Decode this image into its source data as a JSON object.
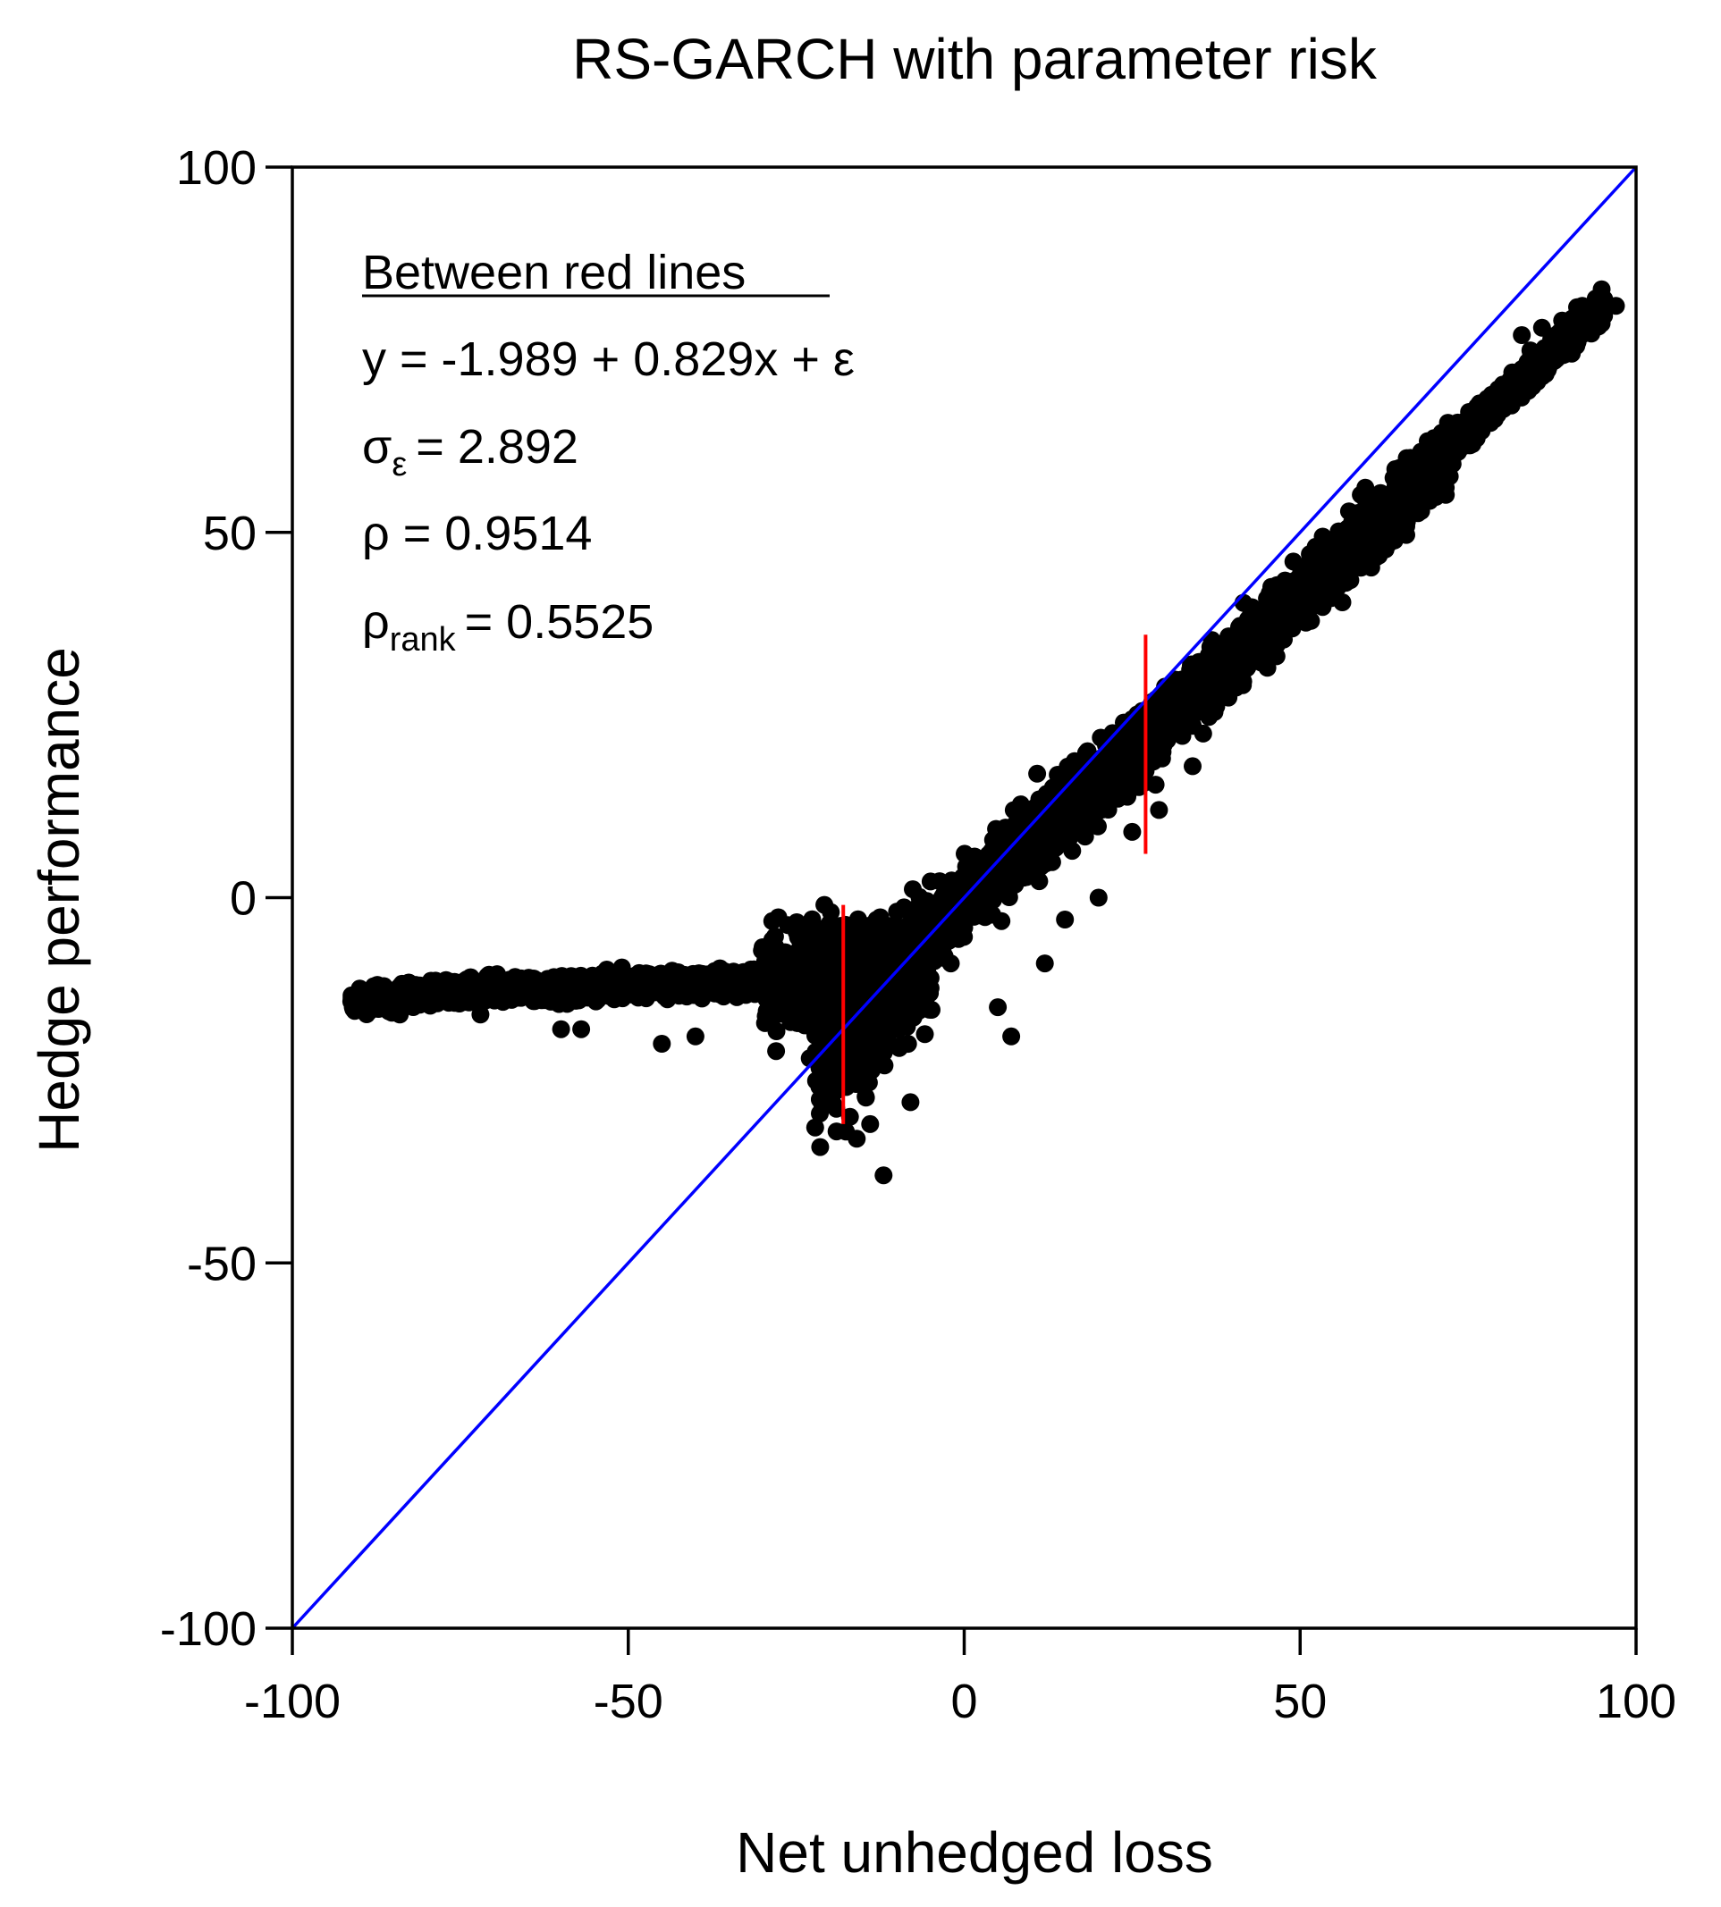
{
  "chart_data": {
    "type": "scatter",
    "title": "RS-GARCH with parameter risk",
    "xlabel": "Net unhedged loss",
    "ylabel": "Hedge performance",
    "xlim": [
      -100,
      100
    ],
    "ylim": [
      -100,
      100
    ],
    "xticks": [
      -100,
      -50,
      0,
      50,
      100
    ],
    "yticks": [
      -100,
      -50,
      0,
      50,
      100
    ],
    "xtick_labels": [
      "-100",
      "-50",
      "0",
      "50",
      "100"
    ],
    "ytick_labels": [
      "-100",
      "-50",
      "0",
      "50",
      "100"
    ],
    "grid": false,
    "colors": {
      "points": "#000000",
      "identity_line": "#0000ff",
      "red_lines": "#ff0000",
      "axes": "#000000"
    },
    "identity_line": {
      "x": [
        -100,
        100
      ],
      "y": [
        -100,
        100
      ]
    },
    "red_lines": [
      {
        "x": -18,
        "y": [
          -31,
          -1
        ]
      },
      {
        "x": 27,
        "y": [
          6,
          36
        ]
      }
    ],
    "annotation": {
      "heading": "Between red lines",
      "equation": "y = -1.989 + 0.829x + ε",
      "sigma_symbol": "σ",
      "sigma_sub": "ε",
      "sigma_value": "= 2.892",
      "rho_text": "ρ = 0.9514",
      "rho_rank_symbol": "ρ",
      "rho_rank_sub": "rank",
      "rho_rank_value": "= 0.5525"
    },
    "regression": {
      "intercept": -1.989,
      "slope": 0.829,
      "sigma_epsilon": 2.892,
      "rho": 0.9514,
      "rho_rank": 0.5525
    },
    "point_bands": [
      {
        "x_range": [
          -91,
          -30
        ],
        "y_at_start": -14.8,
        "y_at_end": -11.5,
        "spread": 1.1,
        "curve": 0.4
      },
      {
        "x_range": [
          -30,
          -12
        ],
        "y_at_start": -11.5,
        "y_at_end": -9,
        "spread": 4.5,
        "curve": 1.0
      },
      {
        "x_range": [
          -22,
          -5
        ],
        "y_at_start": -24,
        "y_at_end": -8,
        "spread": 5.5,
        "curve": 1.0
      },
      {
        "x_range": [
          -12,
          30
        ],
        "y_at_start": -10,
        "y_at_end": 24,
        "spread": 3.4,
        "curve": 1.0
      },
      {
        "x_range": [
          25,
          72
        ],
        "y_at_start": 20,
        "y_at_end": 60,
        "spread": 3.0,
        "curve": 1.0
      },
      {
        "x_range": [
          68,
          95
        ],
        "y_at_start": 58,
        "y_at_end": 81,
        "spread": 1.5,
        "curve": 1.0
      }
    ],
    "outlier_points": [
      {
        "x": -91,
        "y": -15
      },
      {
        "x": -89,
        "y": -15
      },
      {
        "x": -87,
        "y": -14
      },
      {
        "x": -84,
        "y": -16
      },
      {
        "x": -81,
        "y": -14
      },
      {
        "x": -72,
        "y": -16
      },
      {
        "x": -60,
        "y": -18
      },
      {
        "x": -57,
        "y": -18
      },
      {
        "x": -45,
        "y": -20
      },
      {
        "x": -40,
        "y": -19
      },
      {
        "x": -28,
        "y": -21
      },
      {
        "x": -23,
        "y": -22
      },
      {
        "x": -19,
        "y": -32
      },
      {
        "x": -17,
        "y": -30
      },
      {
        "x": -16,
        "y": -33
      },
      {
        "x": -14,
        "y": -31
      },
      {
        "x": -12,
        "y": -38
      },
      {
        "x": -8,
        "y": -28
      },
      {
        "x": -5,
        "y": -11
      },
      {
        "x": -2,
        "y": -9
      },
      {
        "x": 5,
        "y": -15
      },
      {
        "x": 7,
        "y": -19
      },
      {
        "x": 12,
        "y": -9
      },
      {
        "x": 15,
        "y": -3
      },
      {
        "x": 20,
        "y": 0
      },
      {
        "x": 25,
        "y": 9
      },
      {
        "x": 29,
        "y": 12
      },
      {
        "x": 34,
        "y": 18
      },
      {
        "x": 41,
        "y": 33
      },
      {
        "x": 45,
        "y": 40
      },
      {
        "x": 65,
        "y": 56
      },
      {
        "x": 72,
        "y": 65
      },
      {
        "x": 77,
        "y": 66
      },
      {
        "x": 83,
        "y": 77
      },
      {
        "x": 86,
        "y": 78
      },
      {
        "x": 89,
        "y": 79
      },
      {
        "x": 92,
        "y": 81
      },
      {
        "x": 94,
        "y": 82
      },
      {
        "x": 97,
        "y": 81
      }
    ]
  }
}
